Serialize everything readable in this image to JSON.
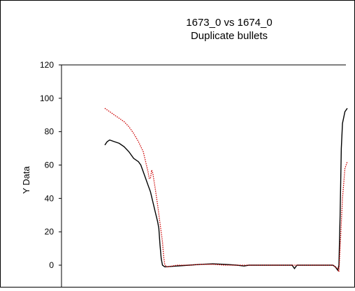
{
  "chart_data": {
    "type": "line",
    "title": "1673_0 vs 1674_0",
    "subtitle": "Duplicate bullets",
    "xlabel": "",
    "ylabel": "Y Data",
    "ylim": [
      -10,
      120
    ],
    "yticks": [
      0,
      20,
      40,
      60,
      80,
      100,
      120
    ],
    "grid": false,
    "legend": "none",
    "series": [
      {
        "color": "#000000",
        "style": "solid",
        "points": [
          [
            0.0,
            72
          ],
          [
            0.01,
            74
          ],
          [
            0.02,
            75
          ],
          [
            0.04,
            74
          ],
          [
            0.06,
            73
          ],
          [
            0.08,
            71
          ],
          [
            0.1,
            68
          ],
          [
            0.12,
            64
          ],
          [
            0.14,
            62
          ],
          [
            0.15,
            60
          ],
          [
            0.16,
            56
          ],
          [
            0.17,
            52
          ],
          [
            0.18,
            48
          ],
          [
            0.19,
            44
          ],
          [
            0.2,
            38
          ],
          [
            0.21,
            32
          ],
          [
            0.22,
            26
          ],
          [
            0.225,
            22
          ],
          [
            0.23,
            12
          ],
          [
            0.235,
            4
          ],
          [
            0.24,
            0
          ],
          [
            0.25,
            -1
          ],
          [
            0.3,
            -0.5
          ],
          [
            0.35,
            0
          ],
          [
            0.4,
            0.5
          ],
          [
            0.45,
            0.8
          ],
          [
            0.5,
            0.5
          ],
          [
            0.55,
            0
          ],
          [
            0.58,
            -0.5
          ],
          [
            0.6,
            0
          ],
          [
            0.65,
            0
          ],
          [
            0.7,
            0
          ],
          [
            0.75,
            0
          ],
          [
            0.78,
            0
          ],
          [
            0.79,
            -2
          ],
          [
            0.8,
            0
          ],
          [
            0.85,
            0
          ],
          [
            0.9,
            0
          ],
          [
            0.95,
            0
          ],
          [
            0.96,
            -1
          ],
          [
            0.97,
            -3
          ],
          [
            0.975,
            0
          ],
          [
            0.98,
            30
          ],
          [
            0.985,
            70
          ],
          [
            0.99,
            85
          ],
          [
            1.0,
            92
          ],
          [
            1.01,
            94
          ]
        ]
      },
      {
        "color": "#cc0000",
        "style": "dotted",
        "points": [
          [
            0.0,
            94
          ],
          [
            0.02,
            92
          ],
          [
            0.04,
            90
          ],
          [
            0.06,
            88
          ],
          [
            0.08,
            86
          ],
          [
            0.1,
            83
          ],
          [
            0.12,
            79
          ],
          [
            0.14,
            74
          ],
          [
            0.16,
            68
          ],
          [
            0.17,
            62
          ],
          [
            0.18,
            56
          ],
          [
            0.185,
            52
          ],
          [
            0.19,
            52
          ],
          [
            0.195,
            57
          ],
          [
            0.2,
            55
          ],
          [
            0.21,
            46
          ],
          [
            0.22,
            36
          ],
          [
            0.23,
            25
          ],
          [
            0.24,
            14
          ],
          [
            0.245,
            5
          ],
          [
            0.25,
            0
          ],
          [
            0.26,
            -1
          ],
          [
            0.3,
            0
          ],
          [
            0.35,
            0
          ],
          [
            0.4,
            0.5
          ],
          [
            0.45,
            0.5
          ],
          [
            0.5,
            0
          ],
          [
            0.55,
            0
          ],
          [
            0.6,
            0
          ],
          [
            0.65,
            0
          ],
          [
            0.7,
            0
          ],
          [
            0.75,
            0
          ],
          [
            0.8,
            0
          ],
          [
            0.85,
            0
          ],
          [
            0.9,
            0
          ],
          [
            0.95,
            0
          ],
          [
            0.97,
            -2
          ],
          [
            0.975,
            -4
          ],
          [
            0.98,
            10
          ],
          [
            0.99,
            40
          ],
          [
            1.0,
            58
          ],
          [
            1.01,
            62
          ]
        ]
      }
    ]
  }
}
